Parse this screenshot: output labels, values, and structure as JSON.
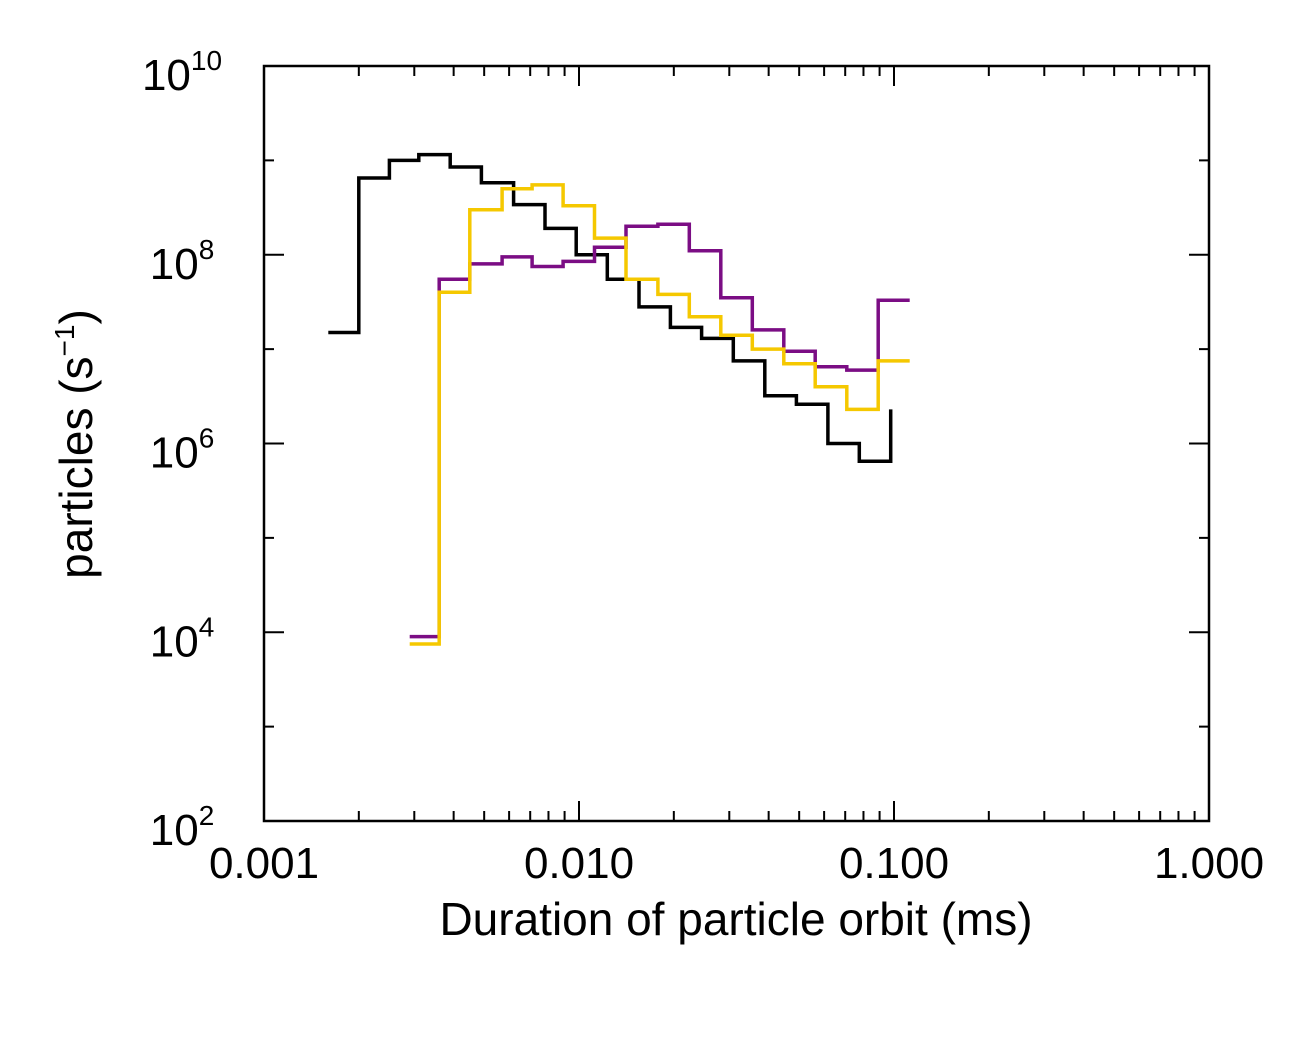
{
  "chart_data": {
    "type": "line",
    "title": "",
    "xlabel": "Duration of particle orbit (ms)",
    "ylabel_main": "particles (s",
    "ylabel_exp": "−1",
    "ylabel_close": ")",
    "x_scale": "log",
    "y_scale": "log",
    "xlim": [
      0.001,
      1.0
    ],
    "ylim": [
      100,
      10000000000
    ],
    "x_ticks": [
      {
        "value": 0.001,
        "label": "0.001"
      },
      {
        "value": 0.01,
        "label": "0.010"
      },
      {
        "value": 0.1,
        "label": "0.100"
      },
      {
        "value": 1.0,
        "label": "1.000"
      }
    ],
    "y_ticks": [
      {
        "value": 100,
        "base": "10",
        "exp": "2"
      },
      {
        "value": 10000,
        "base": "10",
        "exp": "4"
      },
      {
        "value": 1000000,
        "base": "10",
        "exp": "6"
      },
      {
        "value": 100000000,
        "base": "10",
        "exp": "8"
      },
      {
        "value": 10000000000,
        "base": "10",
        "exp": "10"
      }
    ],
    "legend": "none",
    "series": [
      {
        "name": "black",
        "color": "#000000",
        "edges": [
          0.0016,
          0.002,
          0.0025,
          0.0031,
          0.0039,
          0.0049,
          0.0062,
          0.0078,
          0.0098,
          0.0123,
          0.0155,
          0.0195,
          0.0245,
          0.0309,
          0.0389,
          0.049,
          0.0617,
          0.0776,
          0.0976
        ],
        "values": [
          15000000,
          650000000,
          1000000000,
          1150000000,
          850000000,
          580000000,
          340000000,
          190000000,
          100000000,
          55000000,
          28000000,
          17000000,
          13000000,
          7500000,
          3200000,
          2600000,
          1000000,
          650000,
          2300000
        ]
      },
      {
        "name": "purple",
        "color": "#7b0d84",
        "edges": [
          0.0029,
          0.0036,
          0.0045,
          0.0057,
          0.0071,
          0.0089,
          0.0112,
          0.0141,
          0.0178,
          0.0224,
          0.0282,
          0.0355,
          0.0447,
          0.0562,
          0.0708,
          0.0891,
          0.1122
        ],
        "values": [
          9000,
          55000000,
          80000000,
          95000000,
          75000000,
          85000000,
          120000000,
          200000000,
          210000000,
          110000000,
          35000000,
          16000000,
          9500000,
          6500000,
          6000000,
          33000000
        ]
      },
      {
        "name": "gold",
        "color": "#f5c800",
        "edges": [
          0.0029,
          0.0036,
          0.0045,
          0.0057,
          0.0071,
          0.0089,
          0.0112,
          0.0141,
          0.0178,
          0.0224,
          0.0282,
          0.0355,
          0.0447,
          0.0562,
          0.0708,
          0.0891,
          0.1122
        ],
        "values": [
          7500,
          40000000,
          300000000,
          500000000,
          550000000,
          330000000,
          150000000,
          55000000,
          38000000,
          22000000,
          14000000,
          10000000,
          7000000,
          4000000,
          2300000,
          7500000
        ]
      }
    ]
  }
}
